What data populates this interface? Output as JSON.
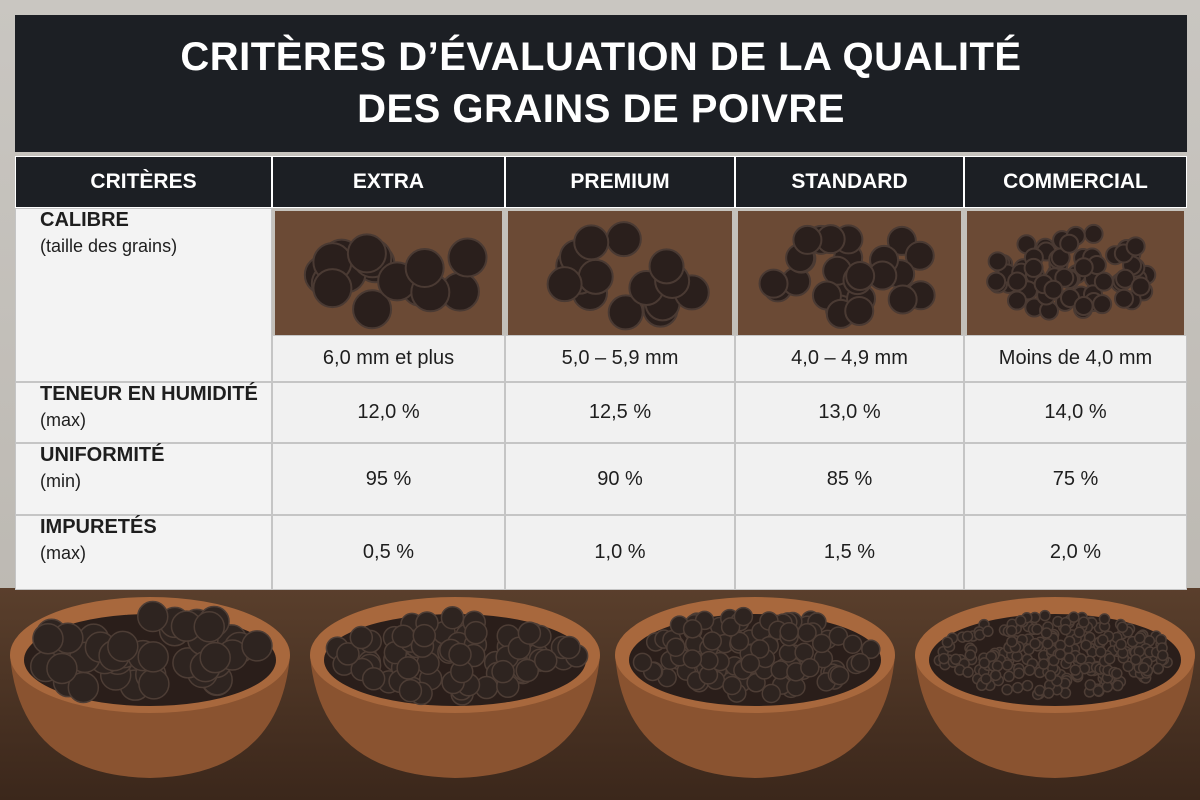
{
  "title": [
    "CRITÈRES D’ÉVALUATION DE LA QUALITÉ",
    "DES GRAINS DE POIVRE"
  ],
  "table": {
    "header": [
      "CRITÈRES",
      "EXTRA",
      "PREMIUM",
      "STANDARD",
      "COMMERCIAL"
    ],
    "rows": [
      {
        "label": "CALIBRE",
        "sublabel": "(taille des grains)",
        "cells": [
          "6,0 mm et plus",
          "5,0 – 5,9 mm",
          "4,0 – 4,9 mm",
          "Moins de 4,0 mm"
        ]
      },
      {
        "label": "TENEUR EN HUMIDITÉ",
        "sublabel": "(max)",
        "cells": [
          "12,0 %",
          "12,5 %",
          "13,0 %",
          "14,0 %"
        ]
      },
      {
        "label": "UNIFORMITÉ",
        "sublabel": "(min)",
        "cells": [
          "95 %",
          "90 %",
          "85 %",
          "75 %"
        ]
      },
      {
        "label": "IMPURETÉS",
        "sublabel": "(max)",
        "cells": [
          "0,5 %",
          "1,0 %",
          "1,5 %",
          "2,0 %"
        ]
      }
    ]
  }
}
